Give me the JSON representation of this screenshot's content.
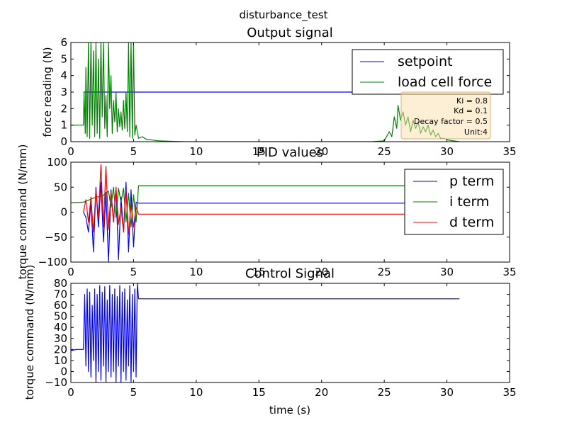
{
  "suptitle": "disturbance_test",
  "chart_data": [
    {
      "type": "line",
      "title": "Output signal",
      "xlabel": "",
      "ylabel": "force reading (N)",
      "xlim": [
        0,
        35
      ],
      "ylim": [
        0,
        6
      ],
      "xticks": [
        "0",
        "5",
        "10",
        "15",
        "20",
        "25",
        "30",
        "35"
      ],
      "yticks": [
        "0",
        "1",
        "2",
        "3",
        "4",
        "5",
        "6"
      ],
      "legend": {
        "position": "top-right",
        "entries": [
          "setpoint",
          "load cell force"
        ]
      },
      "annotation_lines": [
        "Ki = 0.8",
        "Kd = 0.1",
        "Decay factor = 0.5",
        "Unit:4"
      ],
      "series": [
        {
          "name": "setpoint",
          "color": "#0000ff",
          "x": [
            1.0,
            31.0
          ],
          "y": [
            3.0,
            3.0
          ]
        },
        {
          "name": "load cell force",
          "color": "#008000",
          "x": [
            0.0,
            0.5,
            1.0,
            1.05,
            1.15,
            1.2,
            1.3,
            1.4,
            1.5,
            1.6,
            1.7,
            1.8,
            1.9,
            2.0,
            2.1,
            2.2,
            2.3,
            2.4,
            2.5,
            2.6,
            2.7,
            2.8,
            2.9,
            3.0,
            3.1,
            3.2,
            3.3,
            3.4,
            3.5,
            3.6,
            3.7,
            3.8,
            3.9,
            4.0,
            4.1,
            4.2,
            4.3,
            4.4,
            4.5,
            4.6,
            4.7,
            4.8,
            4.9,
            5.0,
            5.1,
            5.2,
            5.4,
            5.7,
            6.0,
            6.5,
            7.0,
            8.0,
            9.0,
            10.0,
            15.0,
            20.0,
            24.0,
            25.0,
            25.4,
            25.6,
            25.8,
            26.0,
            26.1,
            26.3,
            26.5,
            26.7,
            26.9,
            27.1,
            27.3,
            27.5,
            27.7,
            27.9,
            28.1,
            28.3,
            28.5,
            28.7,
            28.9,
            29.1,
            29.3,
            29.5,
            29.8,
            30.1,
            30.5,
            31.0
          ],
          "y": [
            1.0,
            1.0,
            1.0,
            3.0,
            0.5,
            4.5,
            0.3,
            6.0,
            0.2,
            6.0,
            1.0,
            5.5,
            0.3,
            6.0,
            0.5,
            5.0,
            0.2,
            6.0,
            1.5,
            6.0,
            0.8,
            2.8,
            0.3,
            6.0,
            2.0,
            4.0,
            0.5,
            2.5,
            1.2,
            3.0,
            0.6,
            2.0,
            0.9,
            1.8,
            0.7,
            2.5,
            0.8,
            3.0,
            0.6,
            6.0,
            0.3,
            6.0,
            0.2,
            6.0,
            0.4,
            1.0,
            0.2,
            0.3,
            0.15,
            0.1,
            0.05,
            0.02,
            0.0,
            0.0,
            0.0,
            0.0,
            0.0,
            0.05,
            0.6,
            0.3,
            1.5,
            0.8,
            2.2,
            1.3,
            1.8,
            1.0,
            1.5,
            0.6,
            1.3,
            0.8,
            1.2,
            0.5,
            0.9,
            0.6,
            1.0,
            0.4,
            0.7,
            0.3,
            0.5,
            0.2,
            0.2,
            0.1,
            0.05,
            0.0
          ]
        }
      ]
    },
    {
      "type": "line",
      "title": "PID values",
      "xlabel": "",
      "ylabel": "torque command (N/mm)",
      "xlim": [
        0,
        35
      ],
      "ylim": [
        -100,
        100
      ],
      "xticks": [
        "0",
        "5",
        "10",
        "15",
        "20",
        "25",
        "30",
        "35"
      ],
      "yticks": [
        "−100",
        "−50",
        "0",
        "50",
        "100"
      ],
      "legend": {
        "position": "top-right",
        "entries": [
          "p term",
          "i term",
          "d term"
        ]
      },
      "series": [
        {
          "name": "p term",
          "color": "#0000ff",
          "x": [
            1.0,
            1.2,
            1.4,
            1.6,
            1.8,
            2.0,
            2.2,
            2.4,
            2.6,
            2.8,
            3.0,
            3.2,
            3.4,
            3.6,
            3.8,
            4.0,
            4.2,
            4.4,
            4.6,
            4.8,
            5.0,
            5.2,
            5.4,
            31.0
          ],
          "y": [
            0,
            -10,
            -40,
            20,
            -80,
            50,
            -30,
            60,
            -60,
            40,
            -100,
            45,
            -20,
            50,
            -95,
            30,
            -40,
            60,
            -80,
            45,
            -70,
            20,
            18,
            18
          ]
        },
        {
          "name": "i term",
          "color": "#008000",
          "x": [
            0.0,
            1.0,
            1.5,
            2.0,
            2.5,
            3.0,
            3.2,
            3.4,
            3.6,
            3.8,
            4.0,
            4.2,
            4.4,
            4.6,
            4.8,
            5.0,
            5.2,
            5.4,
            31.0
          ],
          "y": [
            19,
            20,
            25,
            30,
            32,
            42,
            10,
            50,
            -10,
            48,
            20,
            48,
            -20,
            38,
            -30,
            35,
            -20,
            53,
            53
          ]
        },
        {
          "name": "d term",
          "color": "#ff0000",
          "x": [
            1.0,
            1.2,
            1.4,
            1.6,
            1.8,
            2.0,
            2.2,
            2.4,
            2.6,
            2.8,
            3.0,
            3.2,
            3.4,
            3.6,
            3.8,
            4.0,
            4.2,
            4.4,
            4.6,
            4.8,
            5.0,
            5.2,
            5.4,
            31.0
          ],
          "y": [
            0,
            25,
            -20,
            30,
            -40,
            45,
            -10,
            95,
            -30,
            92,
            -35,
            40,
            -20,
            50,
            -25,
            10,
            -40,
            45,
            -45,
            15,
            -30,
            10,
            -4,
            -4
          ]
        }
      ]
    },
    {
      "type": "line",
      "title": "Control Signal",
      "xlabel": "time (s)",
      "ylabel": "torque command (N/mm)",
      "xlim": [
        0,
        35
      ],
      "ylim": [
        -10,
        80
      ],
      "xticks": [
        "0",
        "5",
        "10",
        "15",
        "20",
        "25",
        "30",
        "35"
      ],
      "yticks": [
        "−10",
        "0",
        "10",
        "20",
        "30",
        "40",
        "50",
        "60",
        "70",
        "80"
      ],
      "series": [
        {
          "name": "",
          "color": "#0000ff",
          "x": [
            0.0,
            0.5,
            1.0,
            1.1,
            1.2,
            1.3,
            1.4,
            1.5,
            1.6,
            1.7,
            1.8,
            1.9,
            2.0,
            2.1,
            2.2,
            2.3,
            2.4,
            2.5,
            2.6,
            2.7,
            2.8,
            2.9,
            3.0,
            3.1,
            3.2,
            3.3,
            3.4,
            3.5,
            3.6,
            3.7,
            3.8,
            3.9,
            4.0,
            4.1,
            4.2,
            4.3,
            4.4,
            4.5,
            4.6,
            4.7,
            4.8,
            4.9,
            5.0,
            5.1,
            5.2,
            5.3,
            5.4,
            5.5,
            31.0
          ],
          "y": [
            19,
            20,
            20,
            70,
            5,
            75,
            0,
            72,
            -5,
            60,
            10,
            75,
            -10,
            70,
            0,
            78,
            -8,
            72,
            5,
            77,
            -10,
            65,
            0,
            78,
            -5,
            70,
            0,
            75,
            -10,
            68,
            5,
            78,
            -10,
            72,
            0,
            75,
            -8,
            65,
            5,
            78,
            -10,
            70,
            0,
            75,
            -5,
            80,
            66,
            66,
            66
          ]
        }
      ]
    }
  ]
}
